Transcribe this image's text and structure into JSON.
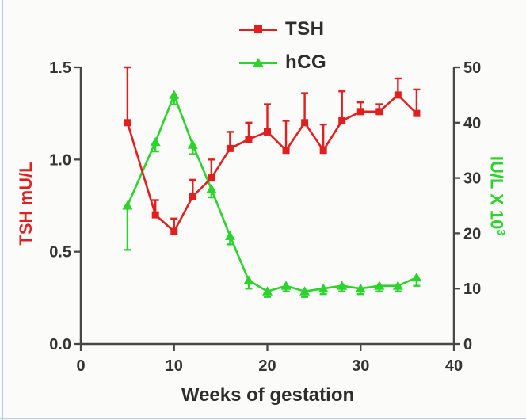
{
  "figure": {
    "background": "#fbfbfa",
    "border_color": "#b5cbe8"
  },
  "legend": {
    "items": [
      {
        "label": "TSH",
        "color": "#e21f1f",
        "marker": "square"
      },
      {
        "label": "hCG",
        "color": "#2cd32c",
        "marker": "triangle"
      }
    ]
  },
  "axes": {
    "x": {
      "label": "Weeks of gestation",
      "tick_labels": [
        "0",
        "10",
        "20",
        "30",
        "40"
      ],
      "range": [
        0,
        40
      ],
      "color": "#2d2d2d"
    },
    "y_left": {
      "label": "TSH mU/L",
      "tick_labels": [
        "0.0",
        "0.5",
        "1.0",
        "1.5"
      ],
      "range": [
        0,
        1.5
      ],
      "color": "#e21f1f"
    },
    "y_right": {
      "label": "IU/L X 10",
      "superscript": "3",
      "tick_labels": [
        "0",
        "10",
        "20",
        "30",
        "40",
        "50"
      ],
      "range": [
        0,
        50
      ],
      "color": "#2cd32c"
    }
  },
  "chart_data": {
    "type": "line",
    "title": "",
    "xlabel": "Weeks of gestation",
    "ylabel_left": "TSH mU/L",
    "ylabel_right": "IU/L X 10^3",
    "x": [
      5,
      8,
      10,
      12,
      14,
      16,
      18,
      20,
      22,
      24,
      26,
      28,
      30,
      32,
      34,
      36
    ],
    "series": [
      {
        "name": "TSH",
        "axis": "left",
        "color": "#e21f1f",
        "marker": "square",
        "values": [
          1.2,
          0.7,
          0.61,
          0.8,
          0.9,
          1.06,
          1.11,
          1.15,
          1.05,
          1.2,
          1.05,
          1.21,
          1.26,
          1.26,
          1.35,
          1.25
        ],
        "error_up": [
          0.3,
          0.08,
          0.07,
          0.09,
          0.1,
          0.09,
          0.09,
          0.15,
          0.16,
          0.16,
          0.14,
          0.16,
          0.05,
          0.04,
          0.09,
          0.13
        ]
      },
      {
        "name": "hCG",
        "axis": "right",
        "color": "#2cd32c",
        "marker": "triangle",
        "values": [
          25,
          36.5,
          45,
          36,
          28,
          19.5,
          11.5,
          9.5,
          10.5,
          9.5,
          10,
          10.5,
          10,
          10.5,
          10.5,
          12
        ],
        "error_down": [
          8,
          1.7,
          1.7,
          1.7,
          1.5,
          1.5,
          1.5,
          1,
          1,
          1,
          1,
          1,
          1,
          1,
          1,
          1.5
        ]
      }
    ],
    "xlim": [
      0,
      40
    ],
    "ylim_left": [
      0,
      1.5
    ],
    "ylim_right": [
      0,
      50
    ],
    "x_ticks": [
      0,
      10,
      20,
      30,
      40
    ],
    "y_left_ticks": [
      0,
      0.5,
      1.0,
      1.5
    ],
    "y_right_ticks": [
      0,
      10,
      20,
      30,
      40,
      50
    ],
    "grid": false,
    "legend_position": "top-center",
    "axis_color": "#474747",
    "tick_label_color": "#343434"
  }
}
